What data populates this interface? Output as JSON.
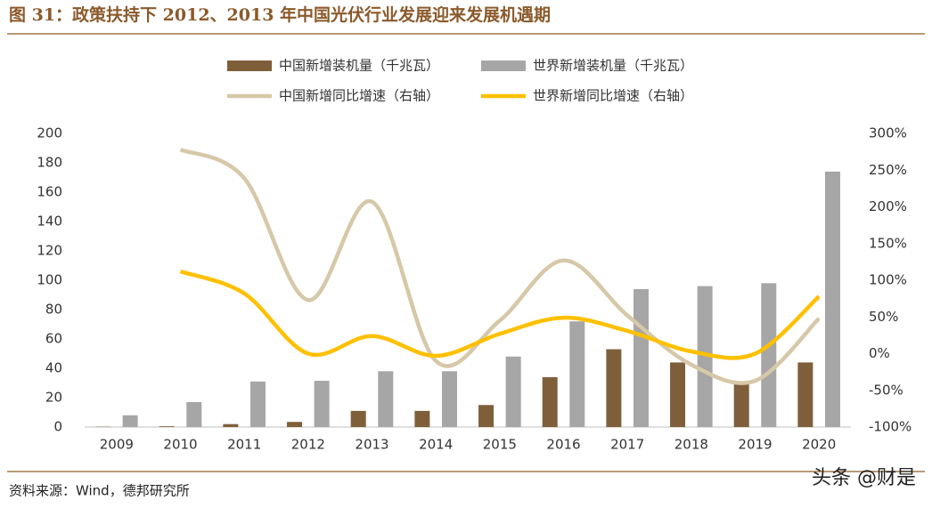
{
  "title": "图 31：政策扶持下 2012、2013 年中国光伏行业发展迎来发展机遇期",
  "source": "资料来源：Wind，德邦研究所",
  "watermark": "头条 @财是",
  "chart_data": {
    "type": "bar-line",
    "categories": [
      "2009",
      "2010",
      "2011",
      "2012",
      "2013",
      "2014",
      "2015",
      "2016",
      "2017",
      "2018",
      "2019",
      "2020"
    ],
    "series": [
      {
        "name": "中国新增装机量（千兆瓦）",
        "type": "bar",
        "color": "#7f5f3a",
        "values": [
          0.2,
          0.5,
          2,
          3.5,
          11,
          11,
          15,
          34,
          53,
          44,
          30,
          44
        ]
      },
      {
        "name": "世界新增装机量（千兆瓦）",
        "type": "bar",
        "color": "#a6a6a6",
        "values": [
          8,
          17,
          31,
          31.5,
          38,
          38,
          48,
          72,
          94,
          96,
          98,
          174
        ]
      },
      {
        "name": "中国新增同比增速（右轴）",
        "type": "line",
        "axis": "y2",
        "color": "#d6c8a8",
        "values": [
          null,
          278,
          239,
          73,
          207,
          -10,
          45,
          127,
          52,
          -15,
          -37,
          48
        ]
      },
      {
        "name": "世界新增同比增速（右轴）",
        "type": "line",
        "axis": "y2",
        "color": "#ffc000",
        "values": [
          null,
          112,
          82,
          0,
          24,
          -3,
          27,
          49,
          31,
          3,
          0,
          78
        ]
      }
    ],
    "ylim": [
      0,
      200
    ],
    "yticks": [
      0,
      20,
      40,
      60,
      80,
      100,
      120,
      140,
      160,
      180,
      200
    ],
    "y2lim": [
      -100,
      300
    ],
    "y2ticks": [
      {
        "value": -100,
        "label": "-100%"
      },
      {
        "value": -50,
        "label": "-50%"
      },
      {
        "value": 0,
        "label": "0%"
      },
      {
        "value": 50,
        "label": "50%"
      },
      {
        "value": 100,
        "label": "100%"
      },
      {
        "value": 150,
        "label": "150%"
      },
      {
        "value": 200,
        "label": "200%"
      },
      {
        "value": 250,
        "label": "250%"
      },
      {
        "value": 300,
        "label": "300%"
      }
    ]
  }
}
